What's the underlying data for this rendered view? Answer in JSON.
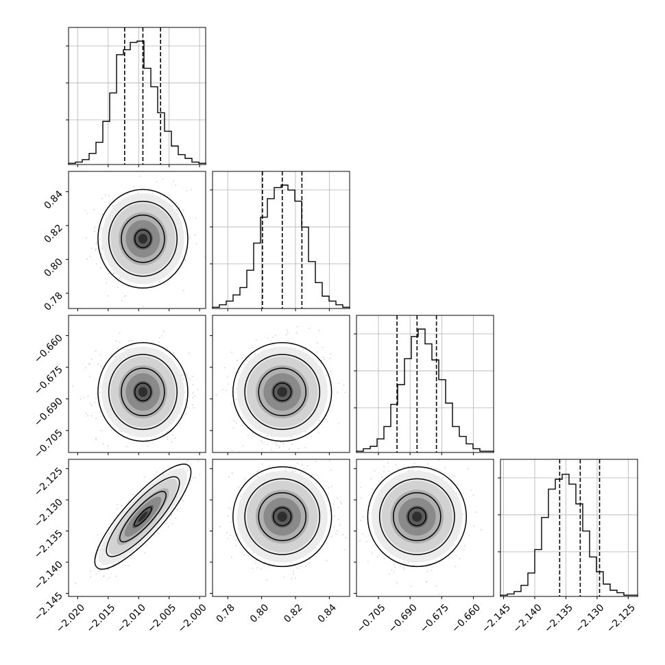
{
  "chart_data": {
    "type": "corner",
    "grid": true,
    "parameters": [
      {
        "range": [
          -2.0215,
          -1.999
        ],
        "ticks": [
          -2.02,
          -2.015,
          -2.01,
          -2.005,
          -2.0
        ],
        "tick_labels": [
          "−2.020",
          "−2.015",
          "−2.010",
          "−2.005",
          "−2.000"
        ],
        "quantiles": [
          -2.0123,
          -2.0093,
          -2.0064
        ],
        "histogram": [
          1,
          2,
          4,
          9,
          18,
          35,
          58,
          89,
          93,
          99,
          100,
          78,
          63,
          42,
          27,
          15,
          8,
          5,
          2,
          1
        ]
      },
      {
        "range": [
          0.771,
          0.852
        ],
        "ticks": [
          0.78,
          0.8,
          0.82,
          0.84
        ],
        "tick_labels": [
          "0.78",
          "0.80",
          "0.82",
          "0.84"
        ],
        "quantiles": [
          0.8005,
          0.8122,
          0.8238
        ],
        "histogram": [
          1,
          3,
          6,
          11,
          17,
          31,
          53,
          74,
          89,
          98,
          100,
          96,
          87,
          66,
          38,
          21,
          10,
          6,
          3,
          1
        ]
      },
      {
        "range": [
          -0.7154,
          -0.6504
        ],
        "ticks": [
          -0.705,
          -0.69,
          -0.675,
          -0.66
        ],
        "tick_labels": [
          "−0.705",
          "−0.690",
          "−0.675",
          "−0.660"
        ],
        "quantiles": [
          -0.6962,
          -0.6867,
          -0.6775
        ],
        "histogram": [
          1,
          3,
          5,
          11,
          21,
          39,
          55,
          76,
          94,
          100,
          88,
          75,
          59,
          40,
          21,
          13,
          7,
          3,
          1,
          1
        ]
      },
      {
        "range": [
          -2.1455,
          -2.1235
        ],
        "ticks": [
          -2.145,
          -2.14,
          -2.135,
          -2.13,
          -2.125
        ],
        "tick_labels": [
          "−2.145",
          "−2.140",
          "−2.135",
          "−2.130",
          "−2.125"
        ],
        "quantiles": [
          -2.136,
          -2.1327,
          -2.1296
        ],
        "histogram": [
          1,
          2,
          4,
          9,
          19,
          38,
          64,
          87,
          95,
          99,
          91,
          75,
          53,
          32,
          20,
          10,
          5,
          3,
          1,
          1
        ]
      }
    ],
    "correlations": [
      [
        1.0,
        0.0,
        0.0,
        0.85
      ],
      [
        0.0,
        1.0,
        0.0,
        0.0
      ],
      [
        0.0,
        0.0,
        1.0,
        0.0
      ],
      [
        0.85,
        0.0,
        0.0,
        1.0
      ]
    ]
  }
}
